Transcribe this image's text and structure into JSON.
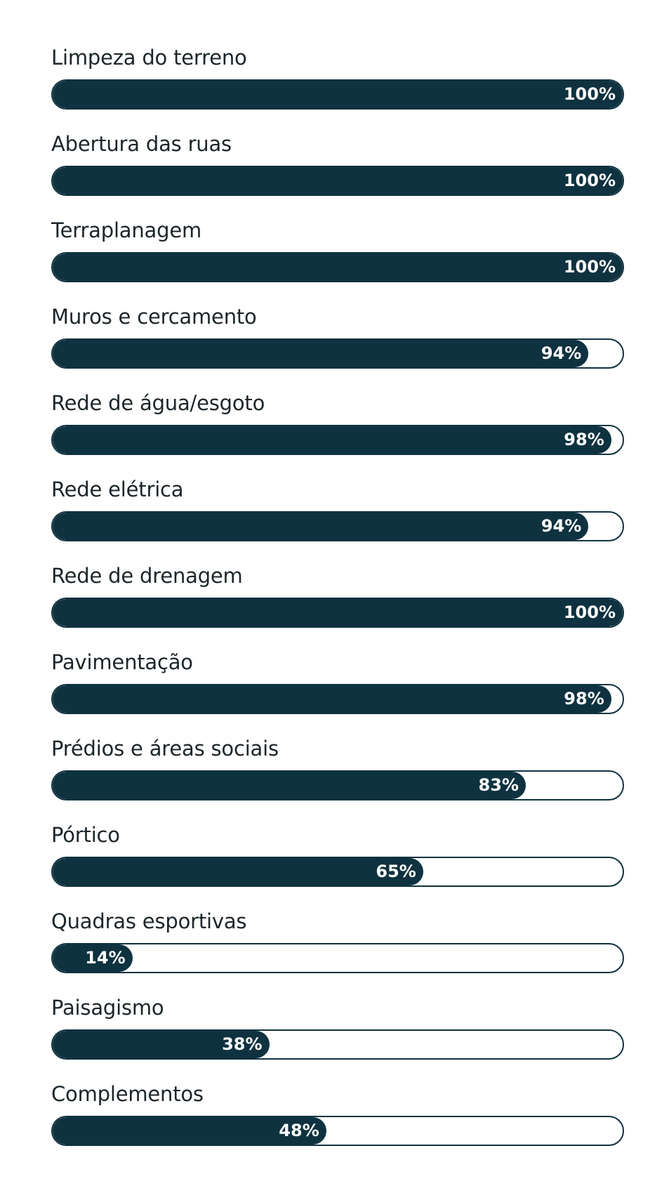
{
  "progress": {
    "accent_color": "#0f3240",
    "items": [
      {
        "label": "Limpeza do terreno",
        "value_text": "100%",
        "value": 100
      },
      {
        "label": "Abertura das ruas",
        "value_text": "100%",
        "value": 100
      },
      {
        "label": "Terraplanagem",
        "value_text": "100%",
        "value": 100
      },
      {
        "label": "Muros e cercamento",
        "value_text": "94%",
        "value": 94
      },
      {
        "label": "Rede de água/esgoto",
        "value_text": "98%",
        "value": 98
      },
      {
        "label": "Rede elétrica",
        "value_text": "94%",
        "value": 94
      },
      {
        "label": "Rede de drenagem",
        "value_text": "100%",
        "value": 100
      },
      {
        "label": "Pavimentação",
        "value_text": "98%",
        "value": 98
      },
      {
        "label": "Prédios e áreas sociais",
        "value_text": "83%",
        "value": 83
      },
      {
        "label": "Pórtico",
        "value_text": "65%",
        "value": 65
      },
      {
        "label": "Quadras esportivas",
        "value_text": "14%",
        "value": 14
      },
      {
        "label": "Paisagismo",
        "value_text": "38%",
        "value": 38
      },
      {
        "label": "Complementos",
        "value_text": "48%",
        "value": 48
      }
    ]
  }
}
